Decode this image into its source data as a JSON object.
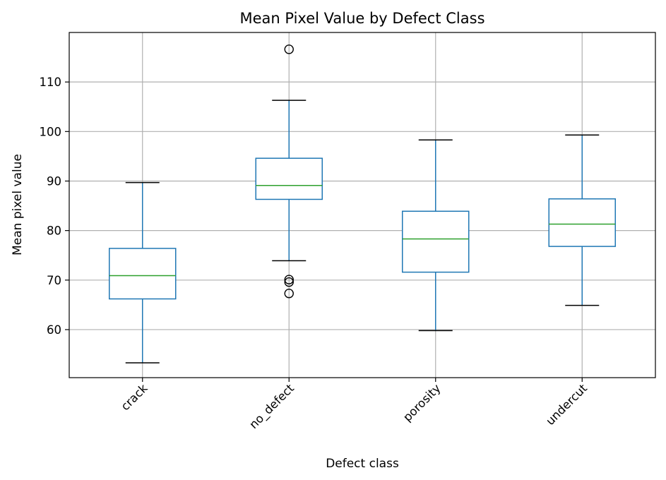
{
  "chart_data": {
    "type": "box",
    "title": "Mean Pixel Value by Defect Class",
    "xlabel": "Defect class",
    "ylabel": "Mean pixel value",
    "ylim": [
      50,
      120
    ],
    "yticks": [
      60,
      70,
      80,
      90,
      100,
      110
    ],
    "grid": true,
    "categories": [
      "crack",
      "no_defect",
      "porosity",
      "undercut"
    ],
    "boxes": [
      {
        "category": "crack",
        "whisker_low": 53.3,
        "q1": 66.2,
        "median": 70.9,
        "q3": 76.4,
        "whisker_high": 89.7,
        "outliers": []
      },
      {
        "category": "no_defect",
        "whisker_low": 73.9,
        "q1": 86.3,
        "median": 89.1,
        "q3": 94.6,
        "whisker_high": 106.3,
        "outliers": [
          116.6,
          70.1,
          69.6,
          67.3
        ]
      },
      {
        "category": "porosity",
        "whisker_low": 59.8,
        "q1": 71.6,
        "median": 78.3,
        "q3": 83.9,
        "whisker_high": 98.3,
        "outliers": []
      },
      {
        "category": "undercut",
        "whisker_low": 64.9,
        "q1": 76.8,
        "median": 81.3,
        "q3": 86.4,
        "whisker_high": 99.3,
        "outliers": []
      }
    ],
    "colors": {
      "box": "#1f77b4",
      "median": "#2ca02c",
      "whisker_cap": "#000000",
      "grid": "#b0b0b0",
      "outlier": "#000000"
    }
  }
}
